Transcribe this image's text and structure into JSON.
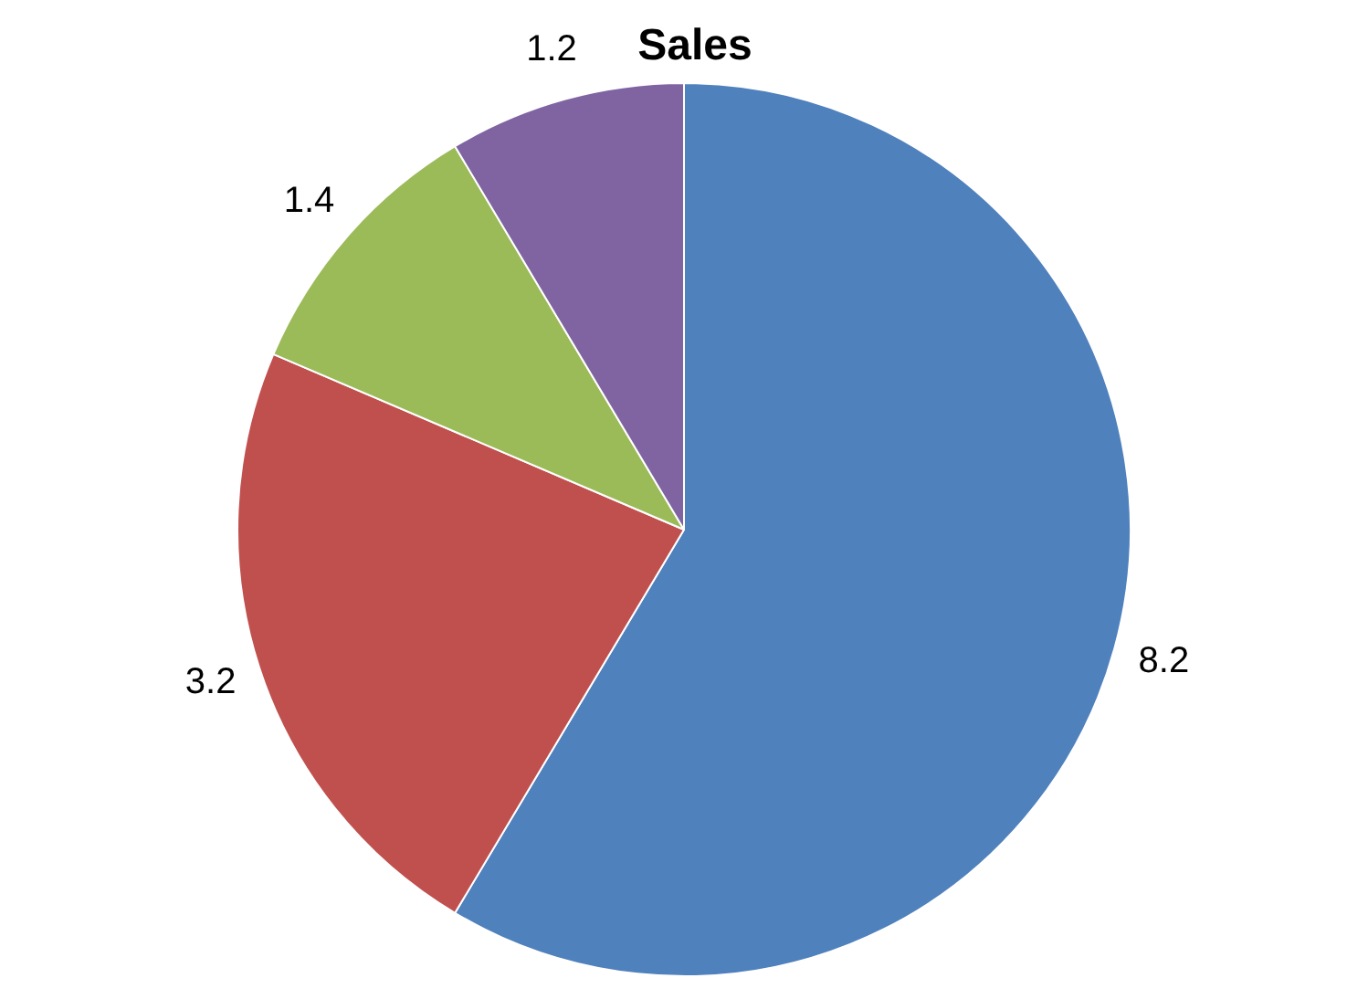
{
  "chart_data": {
    "type": "pie",
    "title": "Sales",
    "categories": [
      null,
      null,
      null,
      null
    ],
    "values": [
      8.2,
      3.2,
      1.4,
      1.2
    ],
    "colors": [
      "#4f81bd",
      "#c0504d",
      "#9bbb59",
      "#8064a2"
    ],
    "data_labels": true,
    "legend": false
  }
}
